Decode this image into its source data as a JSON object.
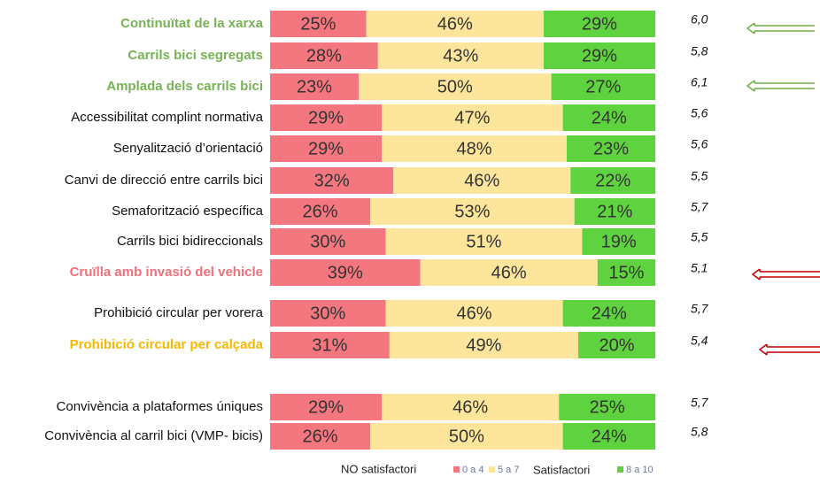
{
  "chart_data": {
    "type": "stacked-bar",
    "categories": [
      "Continuïtat de la xarxa",
      "Carrils bici segregats",
      "Amplada dels carrils bici",
      "Accessibilitat complint normativa",
      "Senyalització d’orientació",
      "Canvi de direcció entre carrils bici",
      "Semaforització específica",
      "Carrils bici bidireccionals",
      "Cruïlla amb invasió del vehicle",
      "Prohibició circular per vorera",
      "Prohibició circular per calçada",
      "Convivència a plataformes úniques",
      "Convivència al carril bici (VMP- bicis)"
    ],
    "xlim": [
      0,
      100
    ],
    "series": [
      {
        "name": "0 a 4",
        "color": "#f4777f",
        "values": [
          25,
          28,
          23,
          29,
          29,
          32,
          26,
          30,
          39,
          30,
          31,
          29,
          26
        ],
        "value_labels": [
          "25%",
          "28%",
          "23%",
          "29%",
          "29%",
          "32%",
          "26%",
          "30%",
          "39%",
          "30%",
          "31%",
          "29%",
          "26%"
        ]
      },
      {
        "name": "5 a 7",
        "color": "#fde69c",
        "values": [
          46,
          43,
          50,
          47,
          48,
          46,
          53,
          51,
          46,
          46,
          49,
          46,
          50
        ],
        "value_labels": [
          "46%",
          "43%",
          "50%",
          "47%",
          "48%",
          "46%",
          "53%",
          "51%",
          "46%",
          "46%",
          "49%",
          "46%",
          "50%"
        ]
      },
      {
        "name": "8 a 10",
        "color": "#5fd33f",
        "values": [
          29,
          29,
          27,
          24,
          23,
          22,
          21,
          19,
          15,
          24,
          20,
          25,
          24
        ],
        "value_labels": [
          "29%",
          "29%",
          "27%",
          "24%",
          "23%",
          "22%",
          "21%",
          "19%",
          "15%",
          "24%",
          "20%",
          "25%",
          "24%"
        ]
      }
    ],
    "scores": [
      "6,0",
      "5,8",
      "6,1",
      "5,6",
      "5,6",
      "5,5",
      "5,7",
      "5,5",
      "5,1",
      "5,7",
      "5,4",
      "5,7",
      "5,8"
    ],
    "legend_groups": [
      "NO satisfactori",
      "Satisfactori"
    ]
  }
}
